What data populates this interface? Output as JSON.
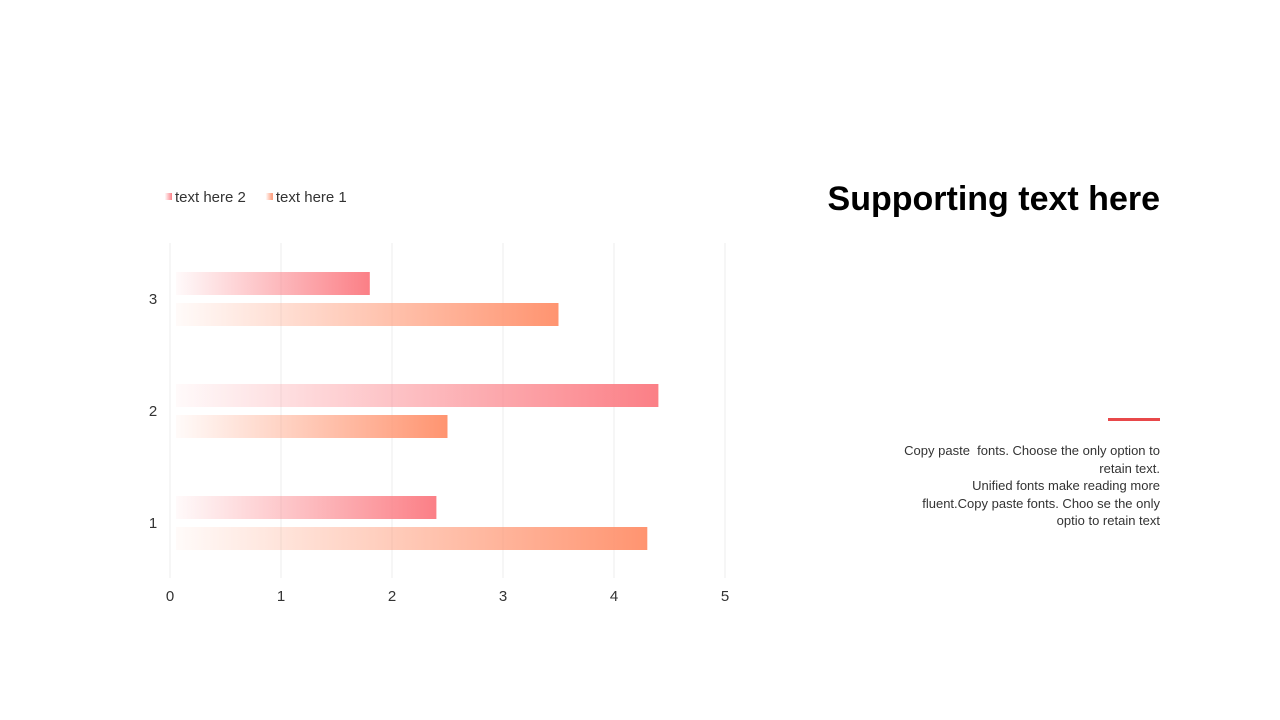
{
  "colors": {
    "series_1": "#ff9470",
    "series_2": "#fb7f86",
    "accent": "#e8484a",
    "grid": "#eeeeee"
  },
  "chart_data": {
    "type": "bar",
    "orientation": "horizontal",
    "categories": [
      "1",
      "2",
      "3"
    ],
    "series": [
      {
        "name": "text here 1",
        "values": [
          4.3,
          2.5,
          3.5
        ]
      },
      {
        "name": "text here 2",
        "values": [
          2.4,
          4.4,
          1.8
        ]
      }
    ],
    "xlim": [
      0,
      5
    ],
    "x_ticks": [
      0,
      1,
      2,
      3,
      4,
      5
    ],
    "legend": {
      "position": "top-left",
      "order": [
        "text here 2",
        "text here 1"
      ]
    },
    "grid": true,
    "bar_fill": "gradient"
  },
  "side_panel": {
    "title": "Supporting text here",
    "body_lines": [
      "Copy paste  fonts. Choose the only option to",
      "retain text.",
      "Unified fonts make reading more",
      "fluent.Copy paste fonts. Choo se the only",
      "optio to retain text"
    ]
  }
}
